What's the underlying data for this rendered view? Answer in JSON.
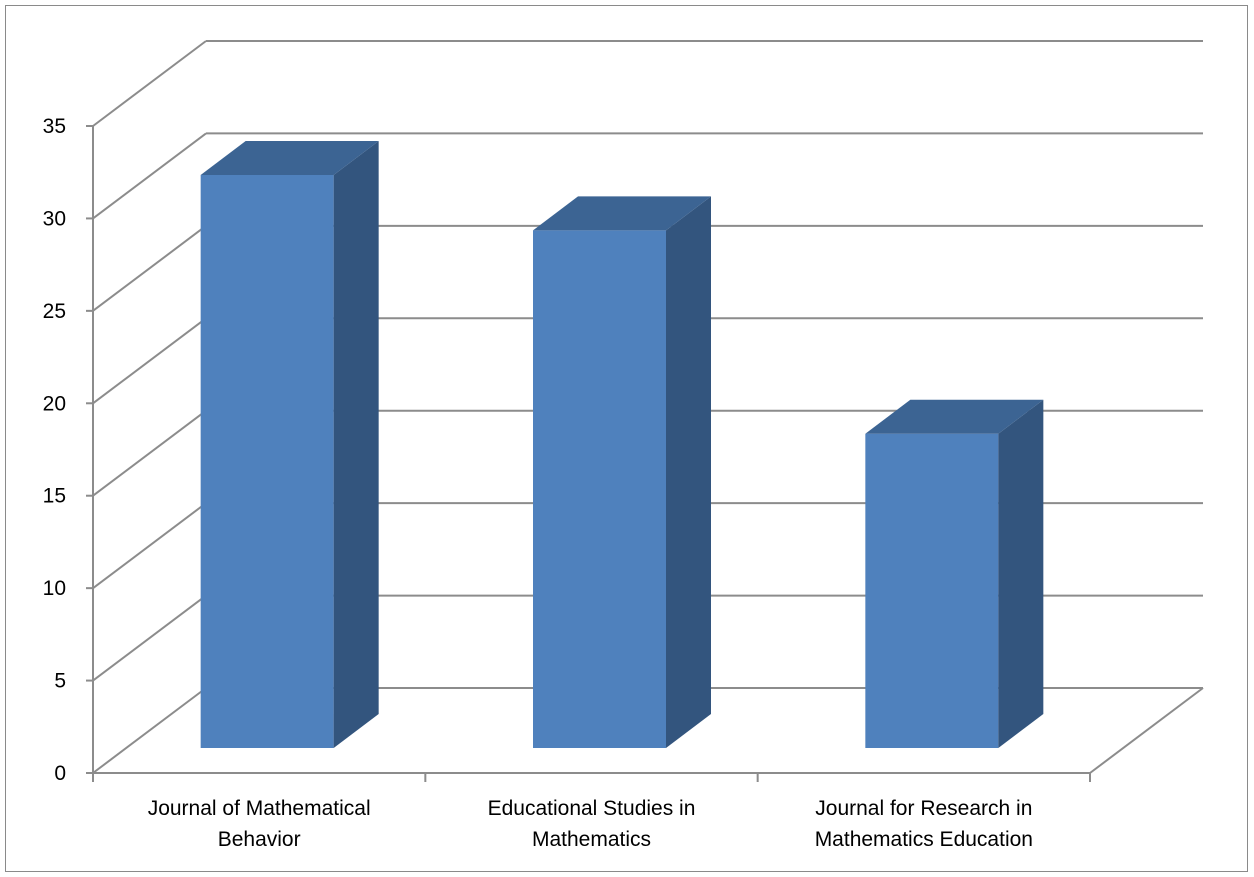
{
  "chart_data": {
    "type": "bar",
    "style": "3d-column",
    "categories": [
      [
        "Journal of Mathematical",
        "Behavior"
      ],
      [
        "Educational Studies in",
        "Mathematics"
      ],
      [
        "Journal for Research in",
        "Mathematics Education"
      ]
    ],
    "series": [
      {
        "values": [
          31,
          28,
          17
        ]
      }
    ],
    "ylim": [
      0,
      35
    ],
    "yticks": [
      0,
      5,
      10,
      15,
      20,
      25,
      30,
      35
    ],
    "grid": true,
    "legend": "none",
    "colors": {
      "bar_front": "#4F81BD",
      "bar_side": "#33557E",
      "bar_top": "#3C6493",
      "grid": "#8C8C8C",
      "axis": "#8C8C8C"
    }
  }
}
